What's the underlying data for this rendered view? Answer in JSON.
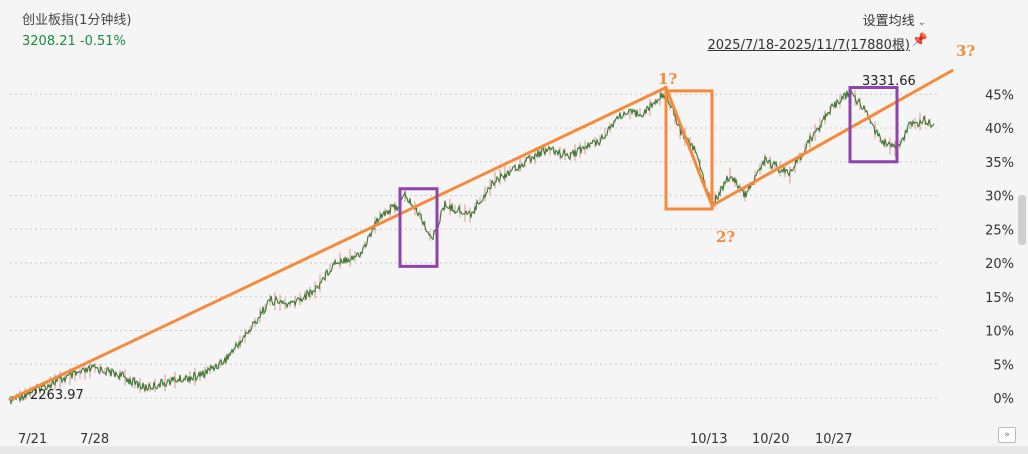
{
  "header": {
    "title": "创业板指(1分钟线)",
    "last_price": "3208.21",
    "change_pct": "-0.51%",
    "settings_label": "设置均线",
    "range_label": "2025/7/18-2025/11/7(17880根)"
  },
  "chart_data": {
    "type": "line",
    "series": [
      {
        "name": "",
        "color": "#2e7d32",
        "values": []
      }
    ],
    "y_axis": {
      "unit": "%",
      "ticks": [
        "45%",
        "40%",
        "35%",
        "30%",
        "25%",
        "20%",
        "15%",
        "10%",
        "5%",
        "0%"
      ],
      "ylim": [
        -0.5,
        49
      ]
    },
    "x_axis": {
      "tick_labels": [
        "7/21",
        "7/28",
        "10/13",
        "10/20",
        "10/27"
      ]
    },
    "key_points": [
      {
        "x": "7/21",
        "y_pct": 0.0,
        "label": "2263.97"
      },
      {
        "x": "8/26",
        "y_pct": 30.0
      },
      {
        "x": "8/28",
        "y_pct": 25.0
      },
      {
        "x": "9/30",
        "y_pct": 46.0
      },
      {
        "x": "10/10",
        "y_pct": 30.0
      },
      {
        "x": "10/29",
        "y_pct": 46.5,
        "label": "3331.66"
      },
      {
        "x": "11/7",
        "y_pct": 40.5
      }
    ],
    "annotations": {
      "trend_lines": [
        {
          "color": "#f7893b",
          "from": {
            "x": "7/18",
            "y_pct": -0.2
          },
          "to": {
            "x": "9/30",
            "y_pct": 46.0
          }
        },
        {
          "color": "#f7893b",
          "from": {
            "x": "9/30",
            "y_pct": 46.0
          },
          "to": {
            "x": "10/10",
            "y_pct": 28.5
          }
        },
        {
          "color": "#f7893b",
          "from": {
            "x": "10/10",
            "y_pct": 28.5
          },
          "to": {
            "x": "11/7+",
            "y_pct": 48.5
          }
        }
      ],
      "labels": [
        {
          "text": "1?",
          "color": "#f7893b"
        },
        {
          "text": "2?",
          "color": "#f7893b"
        },
        {
          "text": "3?",
          "color": "#f7893b"
        }
      ],
      "boxes": [
        {
          "color": "#f7893b",
          "from": {
            "x": "9/30",
            "y_pct": 45.5
          },
          "to": {
            "x": "10/10",
            "y_pct": 28.0
          }
        },
        {
          "color": "#8e44ad",
          "from": {
            "x": "8/25",
            "y_pct": 31.0
          },
          "to": {
            "x": "8/29",
            "y_pct": 19.5
          }
        },
        {
          "color": "#8e44ad",
          "from": {
            "x": "10/29",
            "y_pct": 46.0
          },
          "to": {
            "x": "11/3",
            "y_pct": 35.0
          }
        }
      ]
    }
  }
}
